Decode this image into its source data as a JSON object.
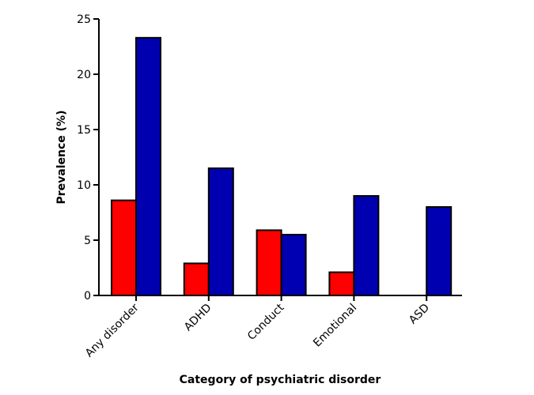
{
  "chart_data": {
    "type": "bar",
    "title": "",
    "xlabel": "Category of psychiatric disorder",
    "ylabel": "Prevalence (%)",
    "ylim": [
      0,
      25
    ],
    "yticks": [
      "0",
      "5",
      "10",
      "15",
      "20",
      "25"
    ],
    "grid": false,
    "legend": "none",
    "categories": [
      "Any disorder",
      "ADHD",
      "Conduct",
      "Emotional",
      "ASD"
    ],
    "series": [
      {
        "color": "#ff0000",
        "values": [
          8.6,
          2.9,
          5.9,
          2.1,
          0
        ]
      },
      {
        "color": "#0000b0",
        "values": [
          23.3,
          11.5,
          5.5,
          9.0,
          8.0
        ]
      }
    ]
  }
}
